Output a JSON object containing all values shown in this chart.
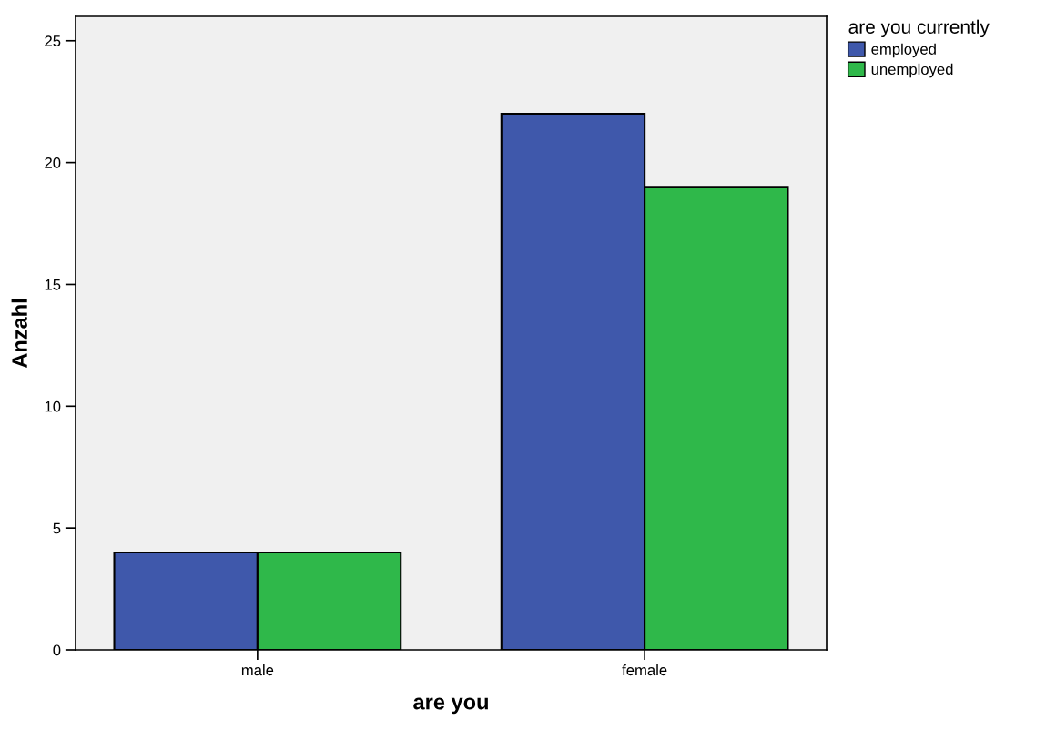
{
  "chart_data": {
    "type": "bar",
    "xlabel": "are you",
    "ylabel": "Anzahl",
    "legend_title": "are you currently",
    "categories": [
      "male",
      "female"
    ],
    "series": [
      {
        "name": "employed",
        "color": "#3f58ab",
        "values": [
          4,
          22
        ]
      },
      {
        "name": "unemployed",
        "color": "#2fb84a",
        "values": [
          4,
          19
        ]
      }
    ],
    "ylim": [
      0,
      26
    ],
    "yticks": [
      0,
      5,
      10,
      15,
      20,
      25
    ],
    "grid": false,
    "legend": "top right"
  }
}
